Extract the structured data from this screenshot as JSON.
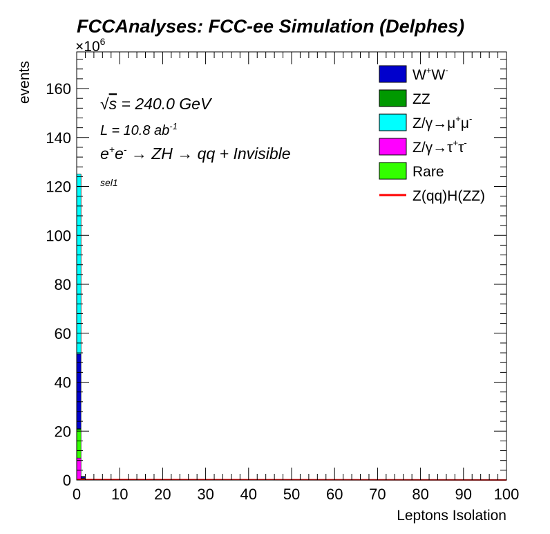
{
  "chart_data": {
    "type": "bar",
    "stacked": true,
    "title": "FCCAnalyses: FCC-ee Simulation (Delphes)",
    "xlabel": "Leptons Isolation",
    "ylabel": "events",
    "y_multiplier": "×10",
    "y_multiplier_exp": "6",
    "xlim": [
      0,
      100
    ],
    "ylim": [
      0,
      175
    ],
    "xticks": [
      "0",
      "10",
      "20",
      "30",
      "40",
      "50",
      "60",
      "70",
      "80",
      "90",
      "100"
    ],
    "yticks": [
      "0",
      "20",
      "40",
      "60",
      "80",
      "100",
      "120",
      "140",
      "160"
    ],
    "bin_edges": [
      0,
      1,
      2
    ],
    "series": [
      {
        "name": "Z/γ→τ⁺τ⁻",
        "color": "#ff00ff",
        "values": [
          9,
          0.3
        ]
      },
      {
        "name": "Rare",
        "color": "#33ff00",
        "values": [
          11.5,
          0.4
        ]
      },
      {
        "name": "ZZ",
        "color": "#009900",
        "values": [
          0.5,
          0.1
        ]
      },
      {
        "name": "W⁺W⁻",
        "color": "#0000cc",
        "values": [
          30.5,
          0.5
        ]
      },
      {
        "name": "Z/γ→μ⁺μ⁻",
        "color": "#00ffff",
        "values": [
          73.5,
          0.2
        ]
      }
    ],
    "signal": {
      "name": "Z(qq)H(ZZ)",
      "color": "#ff0000",
      "values": [
        0.3,
        0.2
      ]
    },
    "legend_position": "top-right",
    "legend": [
      {
        "key": "ww",
        "main": "W",
        "sup1": "+",
        "mid": "W",
        "sup2": "-",
        "color": "#0000cc",
        "style": "box"
      },
      {
        "key": "zz",
        "main": "ZZ",
        "color": "#009900",
        "style": "box"
      },
      {
        "key": "mumu",
        "main": "Z/γ→μ",
        "sup1": "+",
        "mid": "μ",
        "sup2": "-",
        "color": "#00ffff",
        "style": "box"
      },
      {
        "key": "tautau",
        "main": "Z/γ→τ",
        "sup1": "+",
        "mid": "τ",
        "sup2": "-",
        "color": "#ff00ff",
        "style": "box"
      },
      {
        "key": "rare",
        "main": "Rare",
        "color": "#33ff00",
        "style": "box"
      },
      {
        "key": "sig",
        "main": "Z(qq)H(ZZ)",
        "color": "#ff0000",
        "style": "line"
      }
    ],
    "annotations": {
      "sqrts_symbol": "√",
      "sqrts_s": "s",
      "sqrts_value": " = 240.0 GeV",
      "lumi": "L = 10.8 ab",
      "lumi_exp": "-1",
      "process_e1": "e",
      "process_e1_sup": "+",
      "process_e2": "e",
      "process_e2_sup": "-",
      "process_rest": " → ZH → qq + Invisible",
      "selection": "sel1"
    }
  }
}
